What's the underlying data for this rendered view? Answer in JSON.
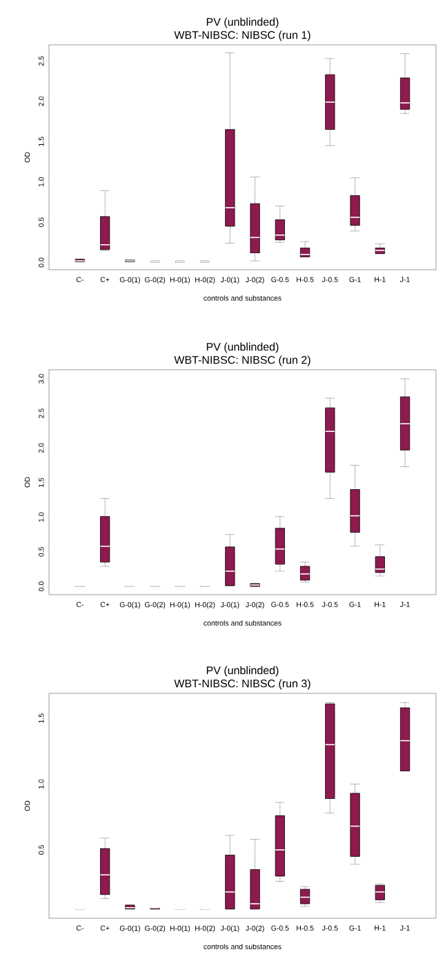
{
  "chart_data": [
    {
      "type": "box",
      "title": "PV (unblinded)",
      "subtitle": "WBT-NIBSC: NIBSC (run 1)",
      "xlabel": "controls and substances",
      "ylabel": "OD",
      "categories": [
        "C-",
        "C+",
        "G-0(1)",
        "G-0(2)",
        "H-0(1)",
        "H-0(2)",
        "J-0(1)",
        "J-0(2)",
        "G-0.5",
        "H-0.5",
        "J-0.5",
        "G-1",
        "H-1",
        "J-1"
      ],
      "colors": [
        "#8e1a4e",
        "#8e1a4e",
        "#8e1a4e",
        "#000000",
        "#000000",
        "#000000",
        "#8e1a4e",
        "#8e1a4e",
        "#8e1a4e",
        "#8e1a4e",
        "#8e1a4e",
        "#8e1a4e",
        "#8e1a4e",
        "#8e1a4e"
      ],
      "ylim": [
        -0.09,
        2.7
      ],
      "yticks": [
        {
          "value": 0,
          "label": "0.0"
        },
        {
          "value": 0.5,
          "label": "0.5"
        },
        {
          "value": 1,
          "label": "1.0"
        },
        {
          "value": 1.5,
          "label": "1.5"
        },
        {
          "value": 2,
          "label": "2.0"
        },
        {
          "value": 2.5,
          "label": "2.5"
        }
      ],
      "boxes": [
        {
          "low": 0.01,
          "q1": 0.01,
          "median": 0.02,
          "q3": 0.04,
          "high": 0.04
        },
        {
          "low": 0.15,
          "q1": 0.16,
          "median": 0.22,
          "q3": 0.57,
          "high": 0.89
        },
        {
          "low": 0.01,
          "q1": 0.01,
          "median": 0.02,
          "q3": 0.03,
          "high": 0.03
        },
        {
          "low": 0.0,
          "q1": 0.01,
          "median": 0.01,
          "q3": 0.01,
          "high": 0.02
        },
        {
          "low": 0.0,
          "q1": 0.01,
          "median": 0.01,
          "q3": 0.01,
          "high": 0.02
        },
        {
          "low": 0.0,
          "q1": 0.01,
          "median": 0.01,
          "q3": 0.01,
          "high": 0.02
        },
        {
          "low": 0.24,
          "q1": 0.45,
          "median": 0.68,
          "q3": 1.65,
          "high": 2.6
        },
        {
          "low": 0.02,
          "q1": 0.12,
          "median": 0.31,
          "q3": 0.73,
          "high": 1.06
        },
        {
          "low": 0.25,
          "q1": 0.28,
          "median": 0.34,
          "q3": 0.53,
          "high": 0.7
        },
        {
          "low": 0.07,
          "q1": 0.07,
          "median": 0.1,
          "q3": 0.18,
          "high": 0.26
        },
        {
          "low": 1.45,
          "q1": 1.65,
          "median": 1.99,
          "q3": 2.33,
          "high": 2.53
        },
        {
          "low": 0.39,
          "q1": 0.46,
          "median": 0.56,
          "q3": 0.83,
          "high": 1.05
        },
        {
          "low": 0.11,
          "q1": 0.11,
          "median": 0.15,
          "q3": 0.18,
          "high": 0.23
        },
        {
          "low": 1.85,
          "q1": 1.9,
          "median": 1.98,
          "q3": 2.29,
          "high": 2.59
        }
      ]
    },
    {
      "type": "box",
      "title": "PV (unblinded)",
      "subtitle": "WBT-NIBSC: NIBSC (run 2)",
      "xlabel": "controls and substances",
      "ylabel": "OD",
      "categories": [
        "C-",
        "C+",
        "G-0(1)",
        "G-0(2)",
        "H-0(1)",
        "H-0(2)",
        "J-0(1)",
        "J-0(2)",
        "G-0.5",
        "H-0.5",
        "J-0.5",
        "G-1",
        "H-1",
        "J-1"
      ],
      "colors": [
        "#000000",
        "#8e1a4e",
        "#000000",
        "#000000",
        "#000000",
        "#000000",
        "#8e1a4e",
        "#8e1a4e",
        "#8e1a4e",
        "#8e1a4e",
        "#8e1a4e",
        "#8e1a4e",
        "#8e1a4e",
        "#8e1a4e"
      ],
      "ylim": [
        -0.12,
        3.13
      ],
      "yticks": [
        {
          "value": 0,
          "label": "0.0"
        },
        {
          "value": 0.5,
          "label": "0.5"
        },
        {
          "value": 1,
          "label": "1.0"
        },
        {
          "value": 1.5,
          "label": "1.5"
        },
        {
          "value": 2,
          "label": "2.0"
        },
        {
          "value": 2.5,
          "label": "2.5"
        },
        {
          "value": 3,
          "label": "3.0"
        }
      ],
      "boxes": [
        {
          "low": 0.0,
          "q1": 0.0,
          "median": 0.0,
          "q3": 0.0,
          "high": 0.0
        },
        {
          "low": 0.29,
          "q1": 0.35,
          "median": 0.58,
          "q3": 1.01,
          "high": 1.27
        },
        {
          "low": 0.0,
          "q1": 0.0,
          "median": 0.0,
          "q3": 0.0,
          "high": 0.0
        },
        {
          "low": 0.0,
          "q1": 0.0,
          "median": 0.0,
          "q3": 0.0,
          "high": 0.0
        },
        {
          "low": 0.0,
          "q1": 0.0,
          "median": 0.0,
          "q3": 0.0,
          "high": 0.0
        },
        {
          "low": 0.0,
          "q1": 0.0,
          "median": 0.0,
          "q3": 0.0,
          "high": 0.0
        },
        {
          "low": 0.01,
          "q1": 0.01,
          "median": 0.22,
          "q3": 0.57,
          "high": 0.75
        },
        {
          "low": 0.0,
          "q1": 0.0,
          "median": 0.02,
          "q3": 0.04,
          "high": 0.04
        },
        {
          "low": 0.22,
          "q1": 0.32,
          "median": 0.54,
          "q3": 0.84,
          "high": 1.01
        },
        {
          "low": 0.06,
          "q1": 0.09,
          "median": 0.18,
          "q3": 0.29,
          "high": 0.35
        },
        {
          "low": 1.27,
          "q1": 1.65,
          "median": 2.24,
          "q3": 2.58,
          "high": 2.72
        },
        {
          "low": 0.58,
          "q1": 0.78,
          "median": 1.02,
          "q3": 1.4,
          "high": 1.75
        },
        {
          "low": 0.15,
          "q1": 0.2,
          "median": 0.25,
          "q3": 0.43,
          "high": 0.6
        },
        {
          "low": 1.73,
          "q1": 1.97,
          "median": 2.35,
          "q3": 2.74,
          "high": 3.0
        }
      ]
    },
    {
      "type": "box",
      "title": "PV (unblinded)",
      "subtitle": "WBT-NIBSC: NIBSC (run 3)",
      "xlabel": "controls and substances",
      "ylabel": "OD",
      "categories": [
        "C-",
        "C+",
        "G-0(1)",
        "G-0(2)",
        "H-0(1)",
        "H-0(2)",
        "J-0(1)",
        "J-0(2)",
        "G-0.5",
        "H-0.5",
        "J-0.5",
        "G-1",
        "H-1",
        "J-1"
      ],
      "colors": [
        "#000000",
        "#8e1a4e",
        "#8e1a4e",
        "#8e1a4e",
        "#000000",
        "#000000",
        "#8e1a4e",
        "#8e1a4e",
        "#8e1a4e",
        "#8e1a4e",
        "#8e1a4e",
        "#8e1a4e",
        "#8e1a4e",
        "#8e1a4e"
      ],
      "ylim": [
        -0.02,
        1.69
      ],
      "yticks": [
        {
          "value": 0.5,
          "label": "0.5"
        },
        {
          "value": 1,
          "label": "1.0"
        },
        {
          "value": 1.5,
          "label": "1.5"
        }
      ],
      "boxes": [
        {
          "low": 0.05,
          "q1": 0.05,
          "median": 0.05,
          "q3": 0.05,
          "high": 0.05
        },
        {
          "low": 0.13,
          "q1": 0.16,
          "median": 0.31,
          "q3": 0.51,
          "high": 0.59
        },
        {
          "low": 0.05,
          "q1": 0.05,
          "median": 0.06,
          "q3": 0.08,
          "high": 0.08
        },
        {
          "low": 0.05,
          "q1": 0.05,
          "median": 0.06,
          "q3": 0.06,
          "high": 0.06
        },
        {
          "low": 0.05,
          "q1": 0.05,
          "median": 0.05,
          "q3": 0.05,
          "high": 0.05
        },
        {
          "low": 0.05,
          "q1": 0.05,
          "median": 0.05,
          "q3": 0.05,
          "high": 0.05
        },
        {
          "low": 0.05,
          "q1": 0.05,
          "median": 0.18,
          "q3": 0.46,
          "high": 0.61
        },
        {
          "low": 0.05,
          "q1": 0.05,
          "median": 0.09,
          "q3": 0.35,
          "high": 0.58
        },
        {
          "low": 0.26,
          "q1": 0.3,
          "median": 0.5,
          "q3": 0.76,
          "high": 0.86
        },
        {
          "low": 0.07,
          "q1": 0.09,
          "median": 0.14,
          "q3": 0.2,
          "high": 0.22
        },
        {
          "low": 0.78,
          "q1": 0.89,
          "median": 1.3,
          "q3": 1.61,
          "high": 1.62
        },
        {
          "low": 0.39,
          "q1": 0.45,
          "median": 0.68,
          "q3": 0.93,
          "high": 1.0
        },
        {
          "low": 0.1,
          "q1": 0.12,
          "median": 0.18,
          "q3": 0.23,
          "high": 0.24
        },
        {
          "low": 1.1,
          "q1": 1.1,
          "median": 1.33,
          "q3": 1.58,
          "high": 1.62
        }
      ]
    }
  ]
}
